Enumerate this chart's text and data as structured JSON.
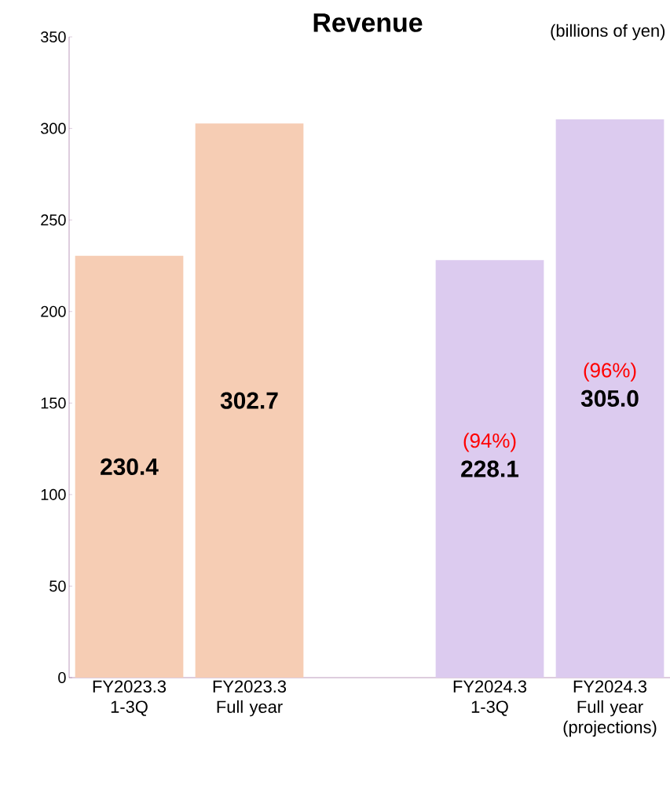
{
  "chart_data": {
    "type": "bar",
    "title": "Revenue",
    "categories": [
      "FY2023.3 1-3Q",
      "FY2023.3 Full year",
      null,
      "FY2024.3 1-3Q",
      "FY2024.3 Full year (projections)"
    ],
    "values": [
      230.4,
      302.7,
      null,
      228.1,
      305.0
    ],
    "colors": [
      "#f6cdb4",
      "#f6cdb4",
      null,
      "#dccbef",
      "#dccbef"
    ],
    "value_labels": [
      "230.4",
      "302.7",
      null,
      "228.1",
      "305.0"
    ],
    "ylim": [
      0,
      350
    ],
    "yticks": [
      0,
      50,
      100,
      150,
      200,
      250,
      300,
      350
    ],
    "annotations": [
      "(billions of yen)",
      "(94%)",
      "(96%)"
    ],
    "grid": false
  }
}
